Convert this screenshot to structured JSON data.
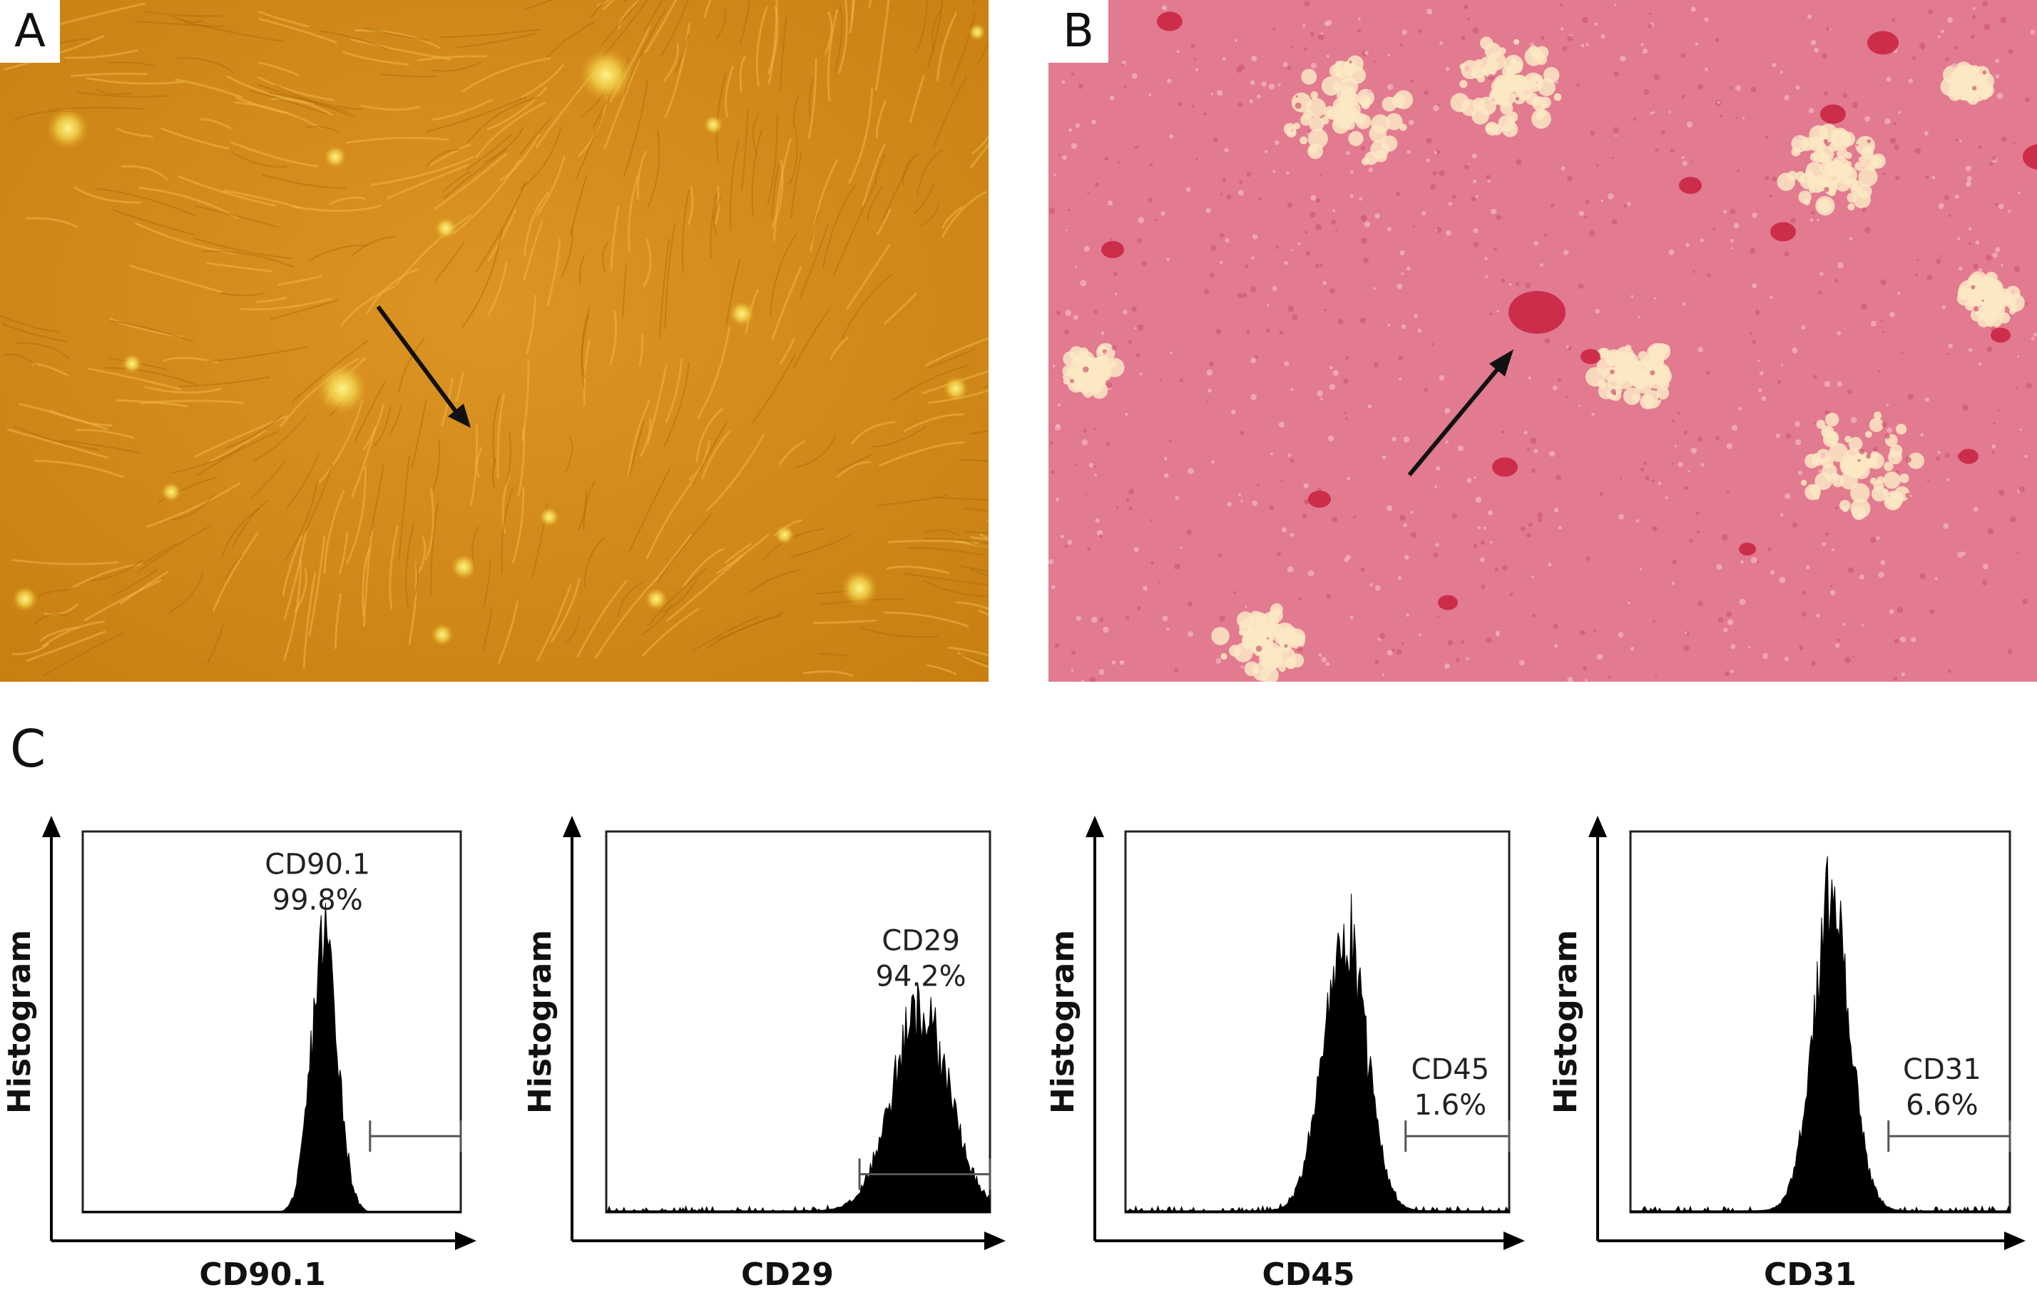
{
  "panels": {
    "a": {
      "letter": "A"
    },
    "b": {
      "letter": "B"
    },
    "c": {
      "letter": "C"
    }
  },
  "colors": {
    "panel_a_bg": "#d48a1a",
    "panel_b_bg": "#e06f86",
    "histogram_fill": "#000000"
  },
  "chart_data": [
    {
      "type": "area",
      "xlabel": "CD90.1",
      "ylabel": "Histogram",
      "annotation": {
        "marker": "CD90.1",
        "percent": "99.8%"
      },
      "gate": [
        0.76,
        1.0
      ],
      "peak_x": 0.64,
      "peak_width": 0.035,
      "peak_height": 0.72,
      "noise_tail": false
    },
    {
      "type": "area",
      "xlabel": "CD29",
      "ylabel": "Histogram",
      "annotation": {
        "marker": "CD29",
        "percent": "94.2%"
      },
      "gate": [
        0.66,
        1.0
      ],
      "peak_x": 0.82,
      "peak_width": 0.075,
      "peak_height": 0.52,
      "noise_tail": true
    },
    {
      "type": "area",
      "xlabel": "CD45",
      "ylabel": "Histogram",
      "annotation": {
        "marker": "CD45",
        "percent": "1.6%"
      },
      "gate": [
        0.73,
        1.0
      ],
      "peak_x": 0.57,
      "peak_width": 0.055,
      "peak_height": 0.75,
      "noise_tail": true
    },
    {
      "type": "area",
      "xlabel": "CD31",
      "ylabel": "Histogram",
      "annotation": {
        "marker": "CD31",
        "percent": "6.6%"
      },
      "gate": [
        0.68,
        1.0
      ],
      "peak_x": 0.53,
      "peak_width": 0.05,
      "peak_height": 0.8,
      "noise_tail": true
    }
  ]
}
